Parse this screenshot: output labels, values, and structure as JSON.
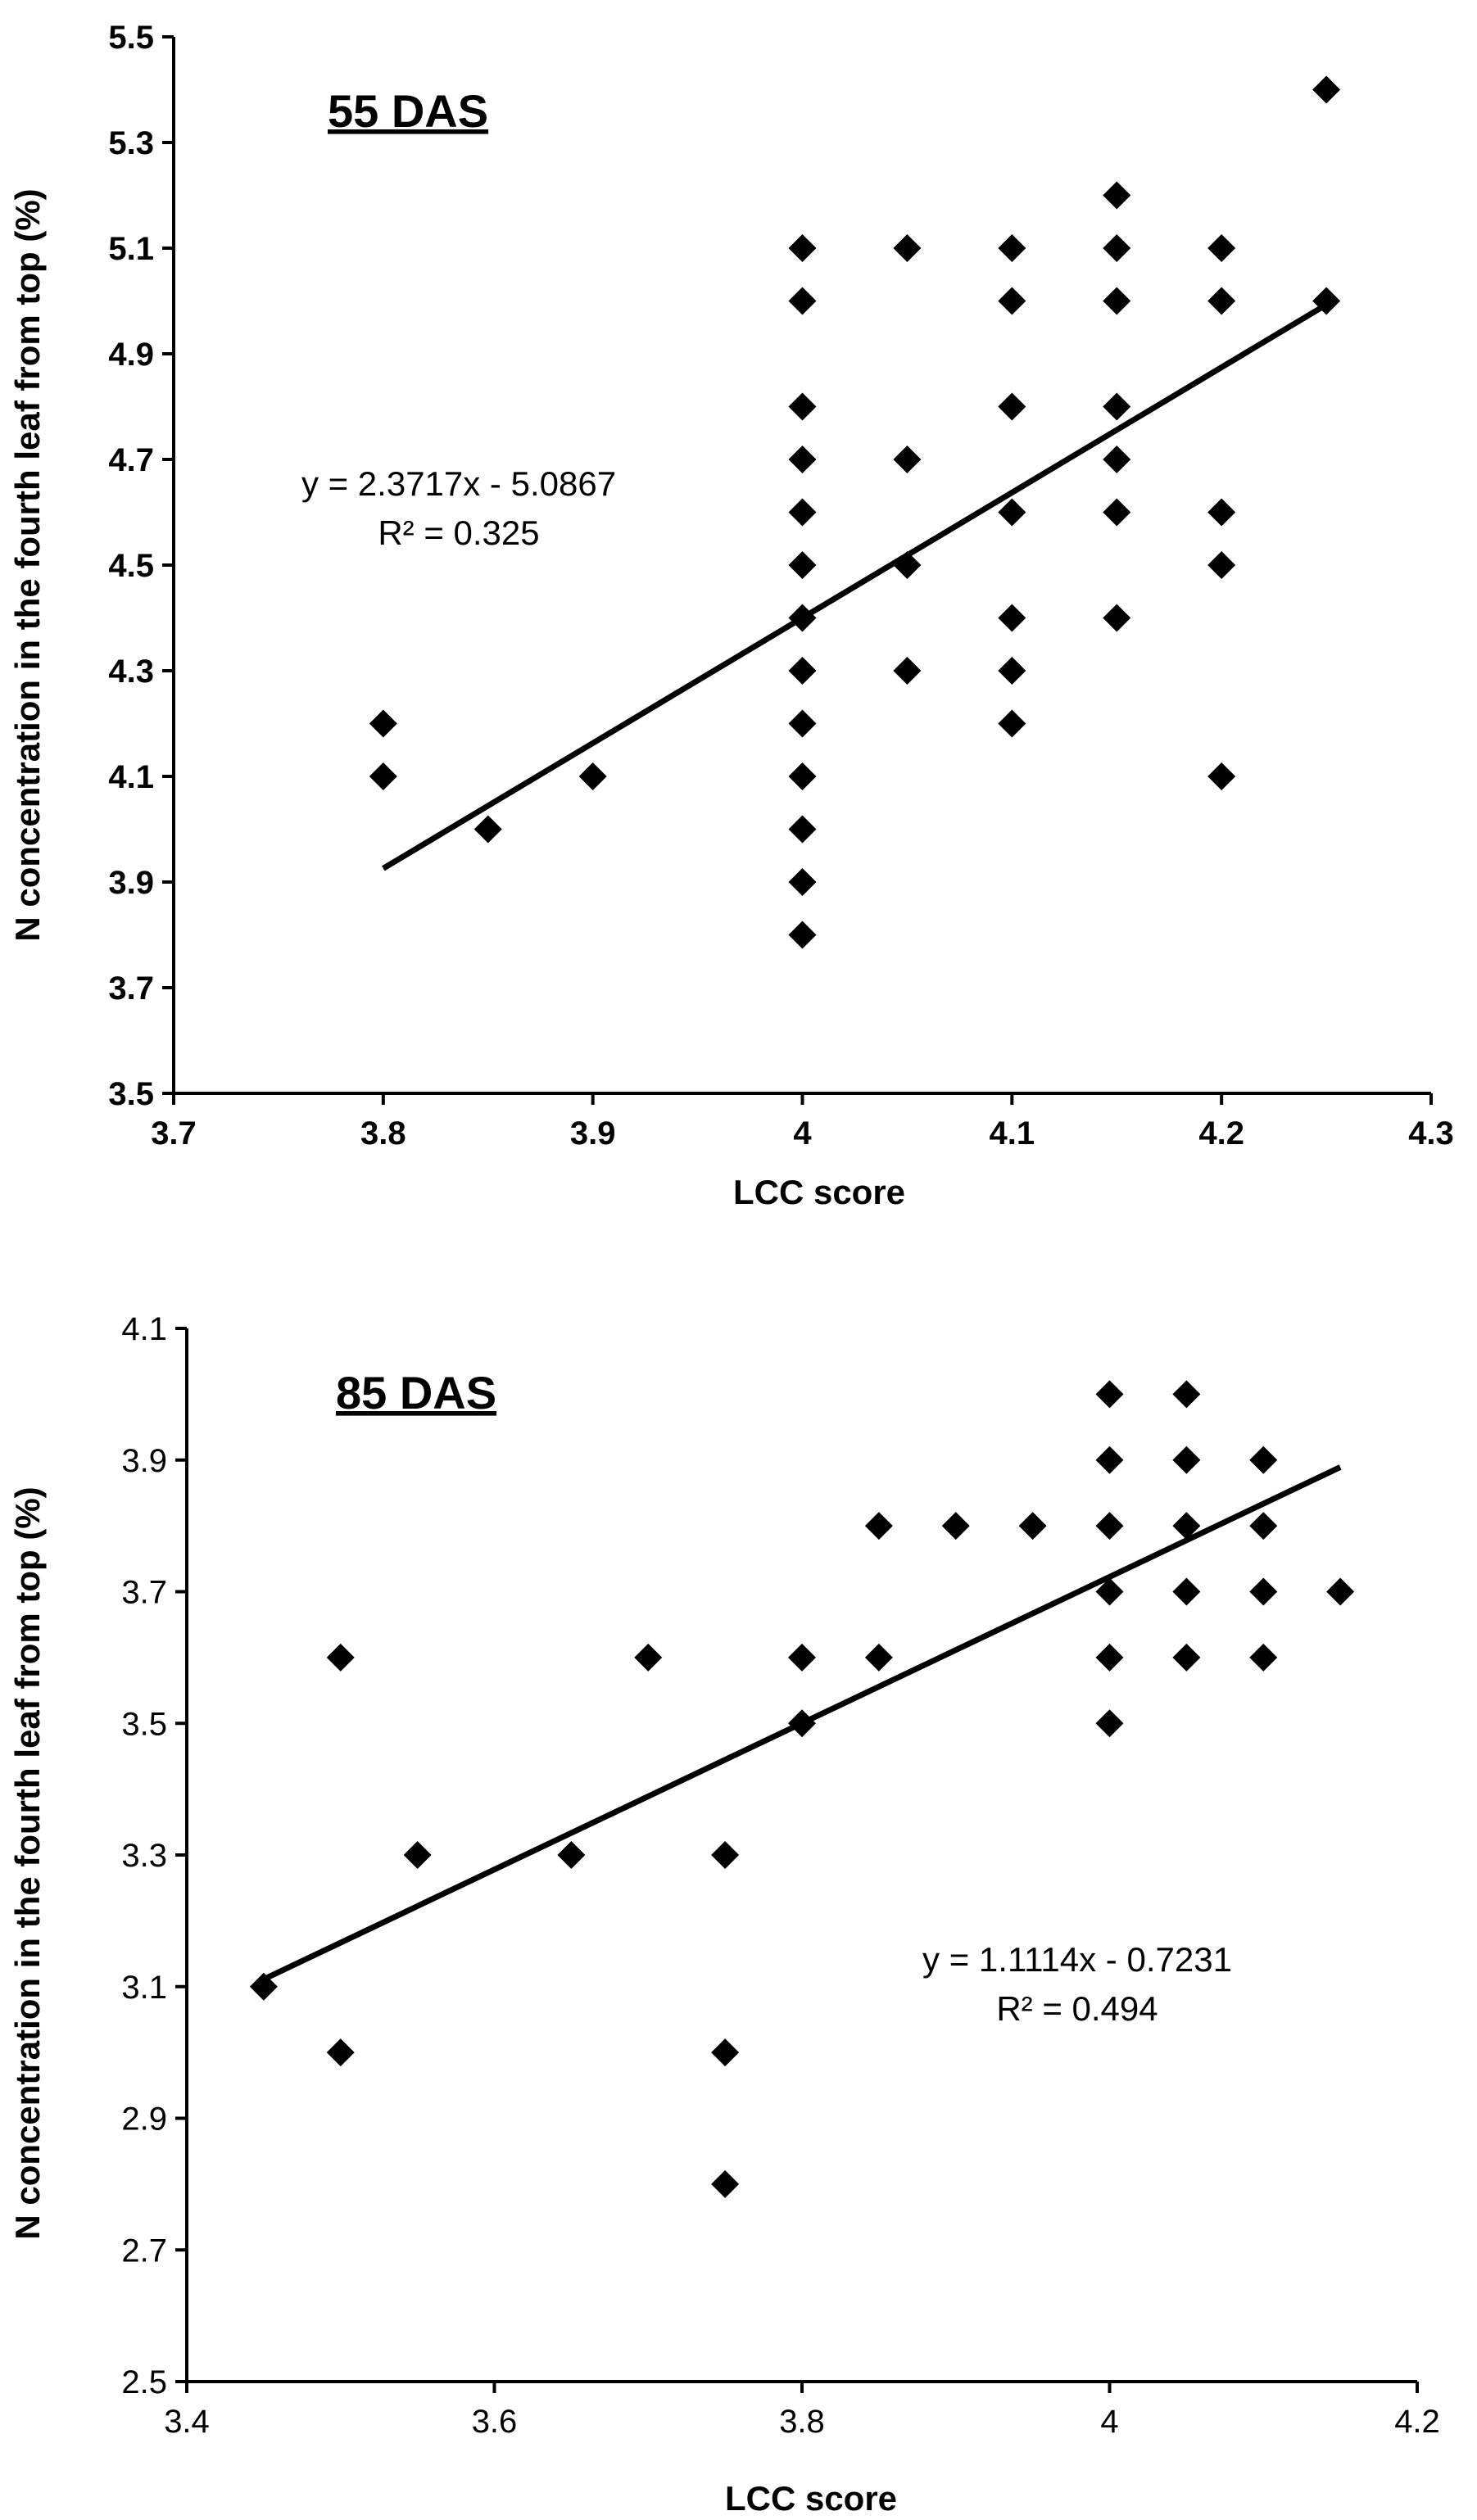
{
  "chart_data": [
    {
      "type": "scatter",
      "panel_label": "55 DAS",
      "xlabel": "LCC score",
      "ylabel": "N concentration in the fourth leaf from top (%)",
      "xlim": [
        3.7,
        4.3
      ],
      "ylim": [
        3.5,
        5.5
      ],
      "x_ticks": [
        "3.7",
        "3.8",
        "3.9",
        "4",
        "4.1",
        "4.2",
        "4.3"
      ],
      "y_ticks": [
        "3.5",
        "3.7",
        "3.9",
        "4.1",
        "4.3",
        "4.5",
        "4.7",
        "4.9",
        "5.1",
        "5.3",
        "5.5"
      ],
      "bold_ticks": true,
      "points": [
        [
          3.8,
          4.2
        ],
        [
          3.8,
          4.1
        ],
        [
          3.85,
          4.0
        ],
        [
          3.9,
          4.1
        ],
        [
          4.0,
          5.1
        ],
        [
          4.0,
          5.0
        ],
        [
          4.0,
          4.8
        ],
        [
          4.0,
          4.7
        ],
        [
          4.0,
          4.6
        ],
        [
          4.0,
          4.5
        ],
        [
          4.0,
          4.4
        ],
        [
          4.0,
          4.3
        ],
        [
          4.0,
          4.2
        ],
        [
          4.0,
          4.1
        ],
        [
          4.0,
          4.0
        ],
        [
          4.0,
          3.9
        ],
        [
          4.0,
          3.8
        ],
        [
          4.05,
          5.1
        ],
        [
          4.05,
          4.7
        ],
        [
          4.05,
          4.5
        ],
        [
          4.05,
          4.3
        ],
        [
          4.1,
          5.1
        ],
        [
          4.1,
          5.0
        ],
        [
          4.1,
          4.8
        ],
        [
          4.1,
          4.6
        ],
        [
          4.1,
          4.4
        ],
        [
          4.1,
          4.3
        ],
        [
          4.1,
          4.2
        ],
        [
          4.15,
          5.2
        ],
        [
          4.15,
          5.1
        ],
        [
          4.15,
          5.0
        ],
        [
          4.15,
          4.8
        ],
        [
          4.15,
          4.7
        ],
        [
          4.15,
          4.6
        ],
        [
          4.15,
          4.4
        ],
        [
          4.2,
          5.1
        ],
        [
          4.2,
          5.0
        ],
        [
          4.2,
          4.6
        ],
        [
          4.2,
          4.5
        ],
        [
          4.2,
          4.1
        ],
        [
          4.25,
          5.4
        ],
        [
          4.25,
          5.0
        ]
      ],
      "trendline": {
        "slope": 2.3717,
        "intercept": -5.0867,
        "x_range": [
          3.8,
          4.25
        ]
      },
      "equation": "y = 2.3717x - 5.0867",
      "r_squared": "R² = 0.325"
    },
    {
      "type": "scatter",
      "panel_label": "85 DAS",
      "xlabel": "LCC score",
      "ylabel": "N concentration in the fourth leaf from top (%)",
      "xlim": [
        3.4,
        4.2
      ],
      "ylim": [
        2.5,
        4.1
      ],
      "x_ticks": [
        "3.4",
        "3.6",
        "3.8",
        "4",
        "4.2"
      ],
      "y_ticks": [
        "2.5",
        "2.7",
        "2.9",
        "3.1",
        "3.3",
        "3.5",
        "3.7",
        "3.9",
        "4.1"
      ],
      "bold_ticks": false,
      "points": [
        [
          3.45,
          3.1
        ],
        [
          3.5,
          3.6
        ],
        [
          3.5,
          3.0
        ],
        [
          3.55,
          3.3
        ],
        [
          3.65,
          3.3
        ],
        [
          3.7,
          3.6
        ],
        [
          3.75,
          3.3
        ],
        [
          3.75,
          3.0
        ],
        [
          3.75,
          2.8
        ],
        [
          3.8,
          3.6
        ],
        [
          3.8,
          3.5
        ],
        [
          3.85,
          3.8
        ],
        [
          3.85,
          3.6
        ],
        [
          3.9,
          3.8
        ],
        [
          3.95,
          3.8
        ],
        [
          4.0,
          4.0
        ],
        [
          4.0,
          3.9
        ],
        [
          4.0,
          3.8
        ],
        [
          4.0,
          3.7
        ],
        [
          4.0,
          3.6
        ],
        [
          4.0,
          3.5
        ],
        [
          4.05,
          4.0
        ],
        [
          4.05,
          3.9
        ],
        [
          4.05,
          3.8
        ],
        [
          4.05,
          3.7
        ],
        [
          4.05,
          3.6
        ],
        [
          4.1,
          3.9
        ],
        [
          4.1,
          3.8
        ],
        [
          4.1,
          3.7
        ],
        [
          4.1,
          3.6
        ],
        [
          4.15,
          3.7
        ]
      ],
      "trendline": {
        "slope": 1.1114,
        "intercept": -0.7231,
        "x_range": [
          3.45,
          4.15
        ]
      },
      "equation": "y = 1.1114x - 0.7231",
      "r_squared": "R² = 0.494"
    }
  ]
}
